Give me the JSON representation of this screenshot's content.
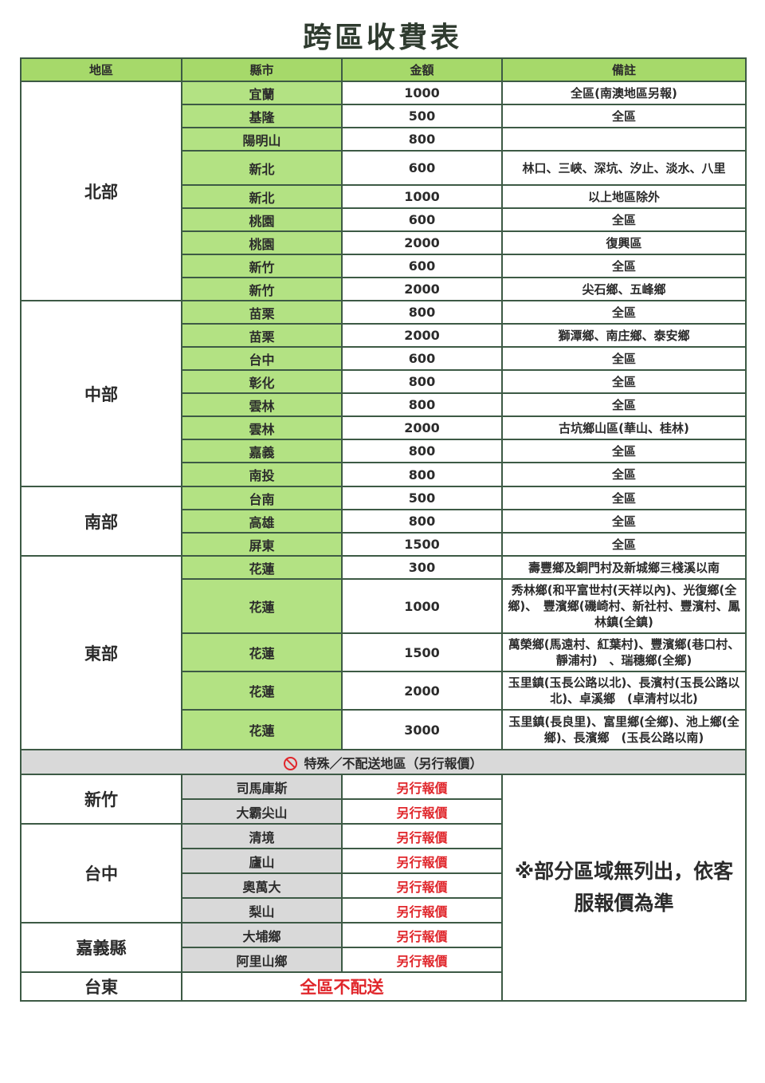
{
  "title": "跨區收費表",
  "headers": [
    "地區",
    "縣市",
    "金額",
    "備註"
  ],
  "groups": [
    {
      "region": "北部",
      "rows": [
        [
          "宜蘭",
          "1000",
          "全區(南澳地區另報)"
        ],
        [
          "基隆",
          "500",
          "全區"
        ],
        [
          "陽明山",
          "800",
          ""
        ],
        [
          "新北",
          "600",
          "林口、三峽、深坑、汐止、淡水、八里"
        ],
        [
          "新北",
          "1000",
          "以上地區除外"
        ],
        [
          "桃園",
          "600",
          "全區"
        ],
        [
          "桃園",
          "2000",
          "復興區"
        ],
        [
          "新竹",
          "600",
          "全區"
        ],
        [
          "新竹",
          "2000",
          "尖石鄉、五峰鄉"
        ]
      ]
    },
    {
      "region": "中部",
      "rows": [
        [
          "苗栗",
          "800",
          "全區"
        ],
        [
          "苗栗",
          "2000",
          "獅潭鄉、南庄鄉、泰安鄉"
        ],
        [
          "台中",
          "600",
          "全區"
        ],
        [
          "彰化",
          "800",
          "全區"
        ],
        [
          "雲林",
          "800",
          "全區"
        ],
        [
          "雲林",
          "2000",
          "古坑鄉山區(華山、桂林)"
        ],
        [
          "嘉義",
          "800",
          "全區"
        ],
        [
          "南投",
          "800",
          "全區"
        ]
      ]
    },
    {
      "region": "南部",
      "rows": [
        [
          "台南",
          "500",
          "全區"
        ],
        [
          "高雄",
          "800",
          "全區"
        ],
        [
          "屏東",
          "1500",
          "全區"
        ]
      ]
    },
    {
      "region": "東部",
      "rows": [
        [
          "花蓮",
          "300",
          "壽豐鄉及銅門村及新城鄉三棧溪以南"
        ],
        [
          "花蓮",
          "1000",
          "秀林鄉(和平富世村(天祥以內)、光復鄉(全鄉)、　豐濱鄉(磯崎村、新社村、豐濱村、鳳林鎮(全鎮)"
        ],
        [
          "花蓮",
          "1500",
          "萬榮鄉(馬遠村、紅葉村)、豐濱鄉(巷口村、靜浦村)　、瑞穗鄉(全鄉)"
        ],
        [
          "花蓮",
          "2000",
          "玉里鎮(玉長公路以北)、長濱村(玉長公路以北)、卓溪鄉　(卓清村以北)"
        ],
        [
          "花蓮",
          "3000",
          "玉里鎮(長良里)、富里鄉(全鄉)、池上鄉(全鄉)、長濱鄉　(玉長公路以南)"
        ]
      ]
    }
  ],
  "special": {
    "title": "特殊／不配送地區（另行報價）",
    "icon": "no-entry-icon",
    "groups": [
      {
        "region": "新竹",
        "rows": [
          [
            "司馬庫斯",
            "另行報價"
          ],
          [
            "大霸尖山",
            "另行報價"
          ]
        ]
      },
      {
        "region": "台中",
        "rows": [
          [
            "清境",
            "另行報價"
          ],
          [
            "廬山",
            "另行報價"
          ],
          [
            "奧萬大",
            "另行報價"
          ],
          [
            "梨山",
            "另行報價"
          ]
        ]
      },
      {
        "region": "嘉義縣",
        "rows": [
          [
            "大埔鄉",
            "另行報價"
          ],
          [
            "阿里山鄉",
            "另行報價"
          ]
        ]
      }
    ],
    "taitung": {
      "region": "台東",
      "text": "全區不配送"
    },
    "note": "※部分區域無列出，依客服報價為準"
  },
  "colors": {
    "header": "#a6d96a",
    "county": "#b3e283",
    "border": "#3d5a45",
    "red": "#e0262b",
    "gray": "#d9d9d9"
  }
}
